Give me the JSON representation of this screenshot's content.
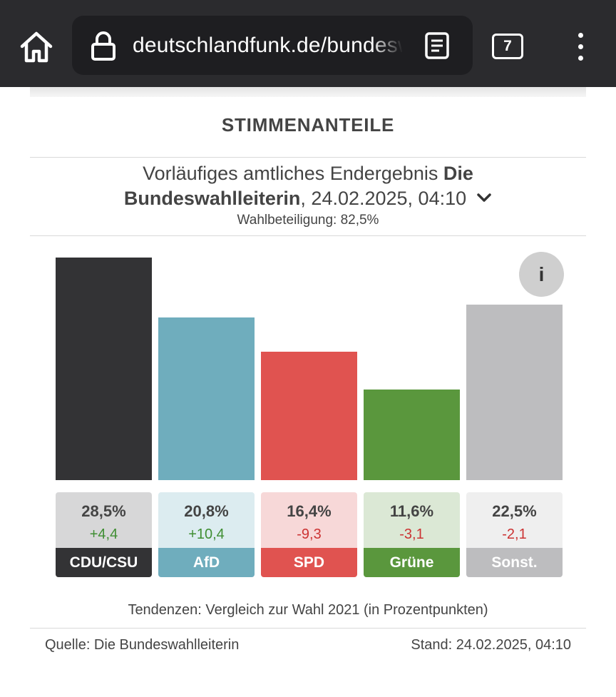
{
  "browser": {
    "url": "deutschlandfunk.de/bundeswahl",
    "tab_count": "7",
    "icons": [
      "home-icon",
      "lock-icon",
      "reader-mode-icon",
      "tabs-icon",
      "more-menu-icon"
    ]
  },
  "widget": {
    "title": "STIMMENANTEILE",
    "subtitle_prefix": "Vorläufiges amtliches Endergebnis",
    "subtitle_source": "Die Bundeswahlleiterin",
    "subtitle_date": ", 24.02.2025, 04:10",
    "turnout": "Wahlbeteiligung: 82,5%",
    "info_label": "i",
    "note": "Tendenzen: Vergleich zur Wahl 2021 (in Prozentpunkten)",
    "source": "Quelle: Die Bundeswahlleiterin",
    "stand": "Stand: 24.02.2025, 04:10"
  },
  "chart_data": {
    "type": "bar",
    "categories": [
      "CDU/CSU",
      "AfD",
      "SPD",
      "Grüne",
      "Sonst."
    ],
    "values": [
      28.5,
      20.8,
      16.4,
      11.6,
      22.5
    ],
    "value_labels": [
      "28,5%",
      "20,8%",
      "16,4%",
      "11,6%",
      "22,5%"
    ],
    "changes": [
      4.4,
      10.4,
      -9.3,
      -3.1,
      -2.1
    ],
    "change_labels": [
      "+4,4",
      "+10,4",
      "-9,3",
      "-3,1",
      "-2,1"
    ],
    "colors": [
      "#333335",
      "#6fadbd",
      "#e05350",
      "#5a973d",
      "#bdbdbf"
    ],
    "card_colors": [
      "#d7d7d8",
      "#dcecf0",
      "#f7d8d8",
      "#dbe8d5",
      "#efefef"
    ],
    "ylim": [
      0,
      28.5
    ],
    "grid": false,
    "legend": "none"
  }
}
